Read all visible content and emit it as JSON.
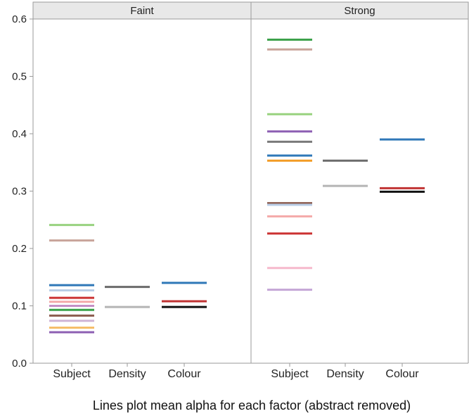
{
  "chart_data": {
    "type": "scatter",
    "marker": "horizontal-line",
    "caption": "Lines plot mean alpha for each factor (abstract removed)",
    "ylim": [
      0,
      0.6
    ],
    "yticks": [
      "0.0",
      "0.1",
      "0.2",
      "0.3",
      "0.4",
      "0.5",
      "0.6"
    ],
    "ytick_values": [
      0,
      0.1,
      0.2,
      0.3,
      0.4,
      0.5,
      0.6
    ],
    "categories": [
      "Subject",
      "Density",
      "Colour"
    ],
    "grid": false,
    "panels": [
      {
        "title": "Faint",
        "groups": [
          {
            "category": "Subject",
            "lines": [
              {
                "value": 0.241,
                "color": "#98d27f"
              },
              {
                "value": 0.214,
                "color": "#c8a49a"
              },
              {
                "value": 0.136,
                "color": "#2f78b8"
              },
              {
                "value": 0.127,
                "color": "#b9cde6"
              },
              {
                "value": 0.114,
                "color": "#cc3333"
              },
              {
                "value": 0.107,
                "color": "#f4a9a8"
              },
              {
                "value": 0.1,
                "color": "#c490c5"
              },
              {
                "value": 0.093,
                "color": "#39a048"
              },
              {
                "value": 0.083,
                "color": "#8c5c4e"
              },
              {
                "value": 0.074,
                "color": "#cfb4d6"
              },
              {
                "value": 0.062,
                "color": "#f6be6a"
              },
              {
                "value": 0.054,
                "color": "#8d5fb3"
              }
            ]
          },
          {
            "category": "Density",
            "lines": [
              {
                "value": 0.133,
                "color": "#6b6b6b"
              },
              {
                "value": 0.098,
                "color": "#b5b5b5"
              }
            ]
          },
          {
            "category": "Colour",
            "lines": [
              {
                "value": 0.14,
                "color": "#2f78b8"
              },
              {
                "value": 0.108,
                "color": "#c03333"
              },
              {
                "value": 0.098,
                "color": "#111111"
              }
            ]
          }
        ]
      },
      {
        "title": "Strong",
        "groups": [
          {
            "category": "Subject",
            "lines": [
              {
                "value": 0.564,
                "color": "#39a048"
              },
              {
                "value": 0.547,
                "color": "#c8a49a"
              },
              {
                "value": 0.434,
                "color": "#98d27f"
              },
              {
                "value": 0.404,
                "color": "#8d5fb3"
              },
              {
                "value": 0.386,
                "color": "#7a7a7a"
              },
              {
                "value": 0.362,
                "color": "#2f78b8"
              },
              {
                "value": 0.353,
                "color": "#f39c25"
              },
              {
                "value": 0.279,
                "color": "#8c5c4e"
              },
              {
                "value": 0.276,
                "color": "#b9cde6"
              },
              {
                "value": 0.256,
                "color": "#f4a9a8"
              },
              {
                "value": 0.226,
                "color": "#cc3333"
              },
              {
                "value": 0.166,
                "color": "#f6b9cc"
              },
              {
                "value": 0.128,
                "color": "#c4a6d6"
              }
            ]
          },
          {
            "category": "Density",
            "lines": [
              {
                "value": 0.353,
                "color": "#6b6b6b"
              },
              {
                "value": 0.309,
                "color": "#b5b5b5"
              }
            ]
          },
          {
            "category": "Colour",
            "lines": [
              {
                "value": 0.39,
                "color": "#2f78b8"
              },
              {
                "value": 0.305,
                "color": "#c03333"
              },
              {
                "value": 0.299,
                "color": "#111111"
              }
            ]
          }
        ]
      }
    ]
  }
}
